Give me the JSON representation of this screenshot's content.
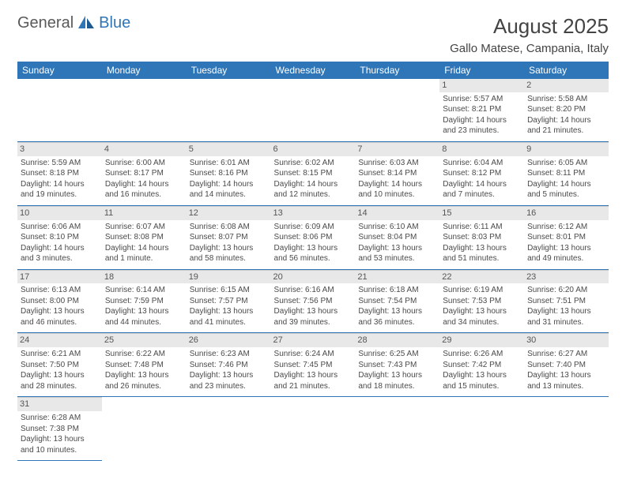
{
  "logo": {
    "text1": "General",
    "text2": "Blue"
  },
  "title": "August 2025",
  "location": "Gallo Matese, Campania, Italy",
  "colors": {
    "header_bg": "#2f76b8",
    "header_text": "#ffffff",
    "daynum_bg": "#e8e8e8",
    "border": "#2f76b8",
    "body_text": "#4a4a4a",
    "title_text": "#444444"
  },
  "weekdays": [
    "Sunday",
    "Monday",
    "Tuesday",
    "Wednesday",
    "Thursday",
    "Friday",
    "Saturday"
  ],
  "weeks": [
    [
      null,
      null,
      null,
      null,
      null,
      {
        "day": "1",
        "sunrise": "Sunrise: 5:57 AM",
        "sunset": "Sunset: 8:21 PM",
        "daylight": "Daylight: 14 hours and 23 minutes."
      },
      {
        "day": "2",
        "sunrise": "Sunrise: 5:58 AM",
        "sunset": "Sunset: 8:20 PM",
        "daylight": "Daylight: 14 hours and 21 minutes."
      }
    ],
    [
      {
        "day": "3",
        "sunrise": "Sunrise: 5:59 AM",
        "sunset": "Sunset: 8:18 PM",
        "daylight": "Daylight: 14 hours and 19 minutes."
      },
      {
        "day": "4",
        "sunrise": "Sunrise: 6:00 AM",
        "sunset": "Sunset: 8:17 PM",
        "daylight": "Daylight: 14 hours and 16 minutes."
      },
      {
        "day": "5",
        "sunrise": "Sunrise: 6:01 AM",
        "sunset": "Sunset: 8:16 PM",
        "daylight": "Daylight: 14 hours and 14 minutes."
      },
      {
        "day": "6",
        "sunrise": "Sunrise: 6:02 AM",
        "sunset": "Sunset: 8:15 PM",
        "daylight": "Daylight: 14 hours and 12 minutes."
      },
      {
        "day": "7",
        "sunrise": "Sunrise: 6:03 AM",
        "sunset": "Sunset: 8:14 PM",
        "daylight": "Daylight: 14 hours and 10 minutes."
      },
      {
        "day": "8",
        "sunrise": "Sunrise: 6:04 AM",
        "sunset": "Sunset: 8:12 PM",
        "daylight": "Daylight: 14 hours and 7 minutes."
      },
      {
        "day": "9",
        "sunrise": "Sunrise: 6:05 AM",
        "sunset": "Sunset: 8:11 PM",
        "daylight": "Daylight: 14 hours and 5 minutes."
      }
    ],
    [
      {
        "day": "10",
        "sunrise": "Sunrise: 6:06 AM",
        "sunset": "Sunset: 8:10 PM",
        "daylight": "Daylight: 14 hours and 3 minutes."
      },
      {
        "day": "11",
        "sunrise": "Sunrise: 6:07 AM",
        "sunset": "Sunset: 8:08 PM",
        "daylight": "Daylight: 14 hours and 1 minute."
      },
      {
        "day": "12",
        "sunrise": "Sunrise: 6:08 AM",
        "sunset": "Sunset: 8:07 PM",
        "daylight": "Daylight: 13 hours and 58 minutes."
      },
      {
        "day": "13",
        "sunrise": "Sunrise: 6:09 AM",
        "sunset": "Sunset: 8:06 PM",
        "daylight": "Daylight: 13 hours and 56 minutes."
      },
      {
        "day": "14",
        "sunrise": "Sunrise: 6:10 AM",
        "sunset": "Sunset: 8:04 PM",
        "daylight": "Daylight: 13 hours and 53 minutes."
      },
      {
        "day": "15",
        "sunrise": "Sunrise: 6:11 AM",
        "sunset": "Sunset: 8:03 PM",
        "daylight": "Daylight: 13 hours and 51 minutes."
      },
      {
        "day": "16",
        "sunrise": "Sunrise: 6:12 AM",
        "sunset": "Sunset: 8:01 PM",
        "daylight": "Daylight: 13 hours and 49 minutes."
      }
    ],
    [
      {
        "day": "17",
        "sunrise": "Sunrise: 6:13 AM",
        "sunset": "Sunset: 8:00 PM",
        "daylight": "Daylight: 13 hours and 46 minutes."
      },
      {
        "day": "18",
        "sunrise": "Sunrise: 6:14 AM",
        "sunset": "Sunset: 7:59 PM",
        "daylight": "Daylight: 13 hours and 44 minutes."
      },
      {
        "day": "19",
        "sunrise": "Sunrise: 6:15 AM",
        "sunset": "Sunset: 7:57 PM",
        "daylight": "Daylight: 13 hours and 41 minutes."
      },
      {
        "day": "20",
        "sunrise": "Sunrise: 6:16 AM",
        "sunset": "Sunset: 7:56 PM",
        "daylight": "Daylight: 13 hours and 39 minutes."
      },
      {
        "day": "21",
        "sunrise": "Sunrise: 6:18 AM",
        "sunset": "Sunset: 7:54 PM",
        "daylight": "Daylight: 13 hours and 36 minutes."
      },
      {
        "day": "22",
        "sunrise": "Sunrise: 6:19 AM",
        "sunset": "Sunset: 7:53 PM",
        "daylight": "Daylight: 13 hours and 34 minutes."
      },
      {
        "day": "23",
        "sunrise": "Sunrise: 6:20 AM",
        "sunset": "Sunset: 7:51 PM",
        "daylight": "Daylight: 13 hours and 31 minutes."
      }
    ],
    [
      {
        "day": "24",
        "sunrise": "Sunrise: 6:21 AM",
        "sunset": "Sunset: 7:50 PM",
        "daylight": "Daylight: 13 hours and 28 minutes."
      },
      {
        "day": "25",
        "sunrise": "Sunrise: 6:22 AM",
        "sunset": "Sunset: 7:48 PM",
        "daylight": "Daylight: 13 hours and 26 minutes."
      },
      {
        "day": "26",
        "sunrise": "Sunrise: 6:23 AM",
        "sunset": "Sunset: 7:46 PM",
        "daylight": "Daylight: 13 hours and 23 minutes."
      },
      {
        "day": "27",
        "sunrise": "Sunrise: 6:24 AM",
        "sunset": "Sunset: 7:45 PM",
        "daylight": "Daylight: 13 hours and 21 minutes."
      },
      {
        "day": "28",
        "sunrise": "Sunrise: 6:25 AM",
        "sunset": "Sunset: 7:43 PM",
        "daylight": "Daylight: 13 hours and 18 minutes."
      },
      {
        "day": "29",
        "sunrise": "Sunrise: 6:26 AM",
        "sunset": "Sunset: 7:42 PM",
        "daylight": "Daylight: 13 hours and 15 minutes."
      },
      {
        "day": "30",
        "sunrise": "Sunrise: 6:27 AM",
        "sunset": "Sunset: 7:40 PM",
        "daylight": "Daylight: 13 hours and 13 minutes."
      }
    ],
    [
      {
        "day": "31",
        "sunrise": "Sunrise: 6:28 AM",
        "sunset": "Sunset: 7:38 PM",
        "daylight": "Daylight: 13 hours and 10 minutes."
      },
      null,
      null,
      null,
      null,
      null,
      null
    ]
  ]
}
